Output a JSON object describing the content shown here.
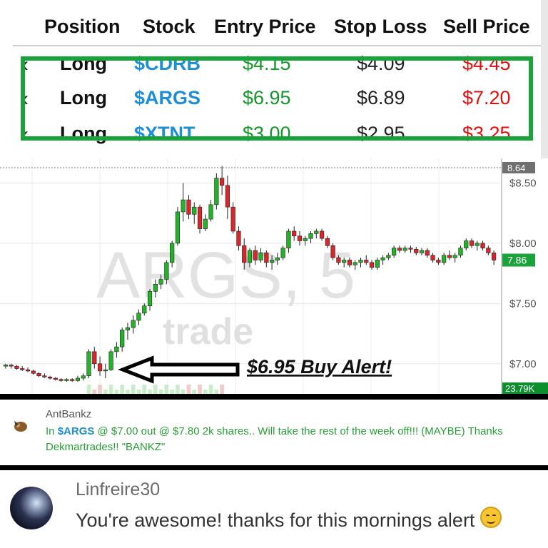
{
  "table": {
    "headers": [
      "Position",
      "Stock",
      "Entry Price",
      "Stop Loss",
      "Sell Price"
    ],
    "rows": [
      {
        "position": "Long",
        "stock": "$CDRB",
        "entry": "$4.15",
        "stop": "$4.09",
        "sell": "$4.45"
      },
      {
        "position": "Long",
        "stock": "$ARGS",
        "entry": "$6.95",
        "stop": "$6.89",
        "sell": "$7.20"
      },
      {
        "position": "Long",
        "stock": "$XTNT",
        "entry": "$3.00",
        "stop": "$2.95",
        "sell": "$3.25"
      }
    ],
    "highlight_color": "#1aa33a"
  },
  "chart": {
    "watermark_symbol": "ARGS, 5",
    "watermark_brand": "trade",
    "price_ticks": [
      "$8.50",
      "$8.00",
      "$7.50",
      "$7.00"
    ],
    "high_label": "8.64",
    "last_label": "7.86",
    "volume_label": "23.79K",
    "annotation": "$6.95 Buy Alert!",
    "up_color": "#22b326",
    "down_color": "#d8262b",
    "last_color": "#1aa33a",
    "chart_data": {
      "type": "candlestick",
      "ylim": [
        6.75,
        8.68
      ],
      "high": 8.64,
      "last": 7.86,
      "candles": [
        [
          6.98,
          7.0,
          6.96,
          6.99
        ],
        [
          6.99,
          7.0,
          6.96,
          6.98
        ],
        [
          6.98,
          6.99,
          6.95,
          6.96
        ],
        [
          6.96,
          6.98,
          6.94,
          6.95
        ],
        [
          6.95,
          6.97,
          6.93,
          6.94
        ],
        [
          6.94,
          6.95,
          6.91,
          6.92
        ],
        [
          6.92,
          6.93,
          6.89,
          6.9
        ],
        [
          6.9,
          6.92,
          6.88,
          6.89
        ],
        [
          6.89,
          6.9,
          6.87,
          6.88
        ],
        [
          6.88,
          6.89,
          6.86,
          6.87
        ],
        [
          6.87,
          6.88,
          6.85,
          6.86
        ],
        [
          6.86,
          6.88,
          6.85,
          6.87
        ],
        [
          6.87,
          6.88,
          6.85,
          6.86
        ],
        [
          6.86,
          6.9,
          6.85,
          6.88
        ],
        [
          6.88,
          6.92,
          6.86,
          6.9
        ],
        [
          6.9,
          7.12,
          6.88,
          7.1
        ],
        [
          7.1,
          7.14,
          6.96,
          7.0
        ],
        [
          7.0,
          7.06,
          6.9,
          6.94
        ],
        [
          6.94,
          7.0,
          6.88,
          6.95
        ],
        [
          6.95,
          7.12,
          6.94,
          7.1
        ],
        [
          7.1,
          7.18,
          7.05,
          7.14
        ],
        [
          7.14,
          7.3,
          7.1,
          7.28
        ],
        [
          7.28,
          7.34,
          7.2,
          7.3
        ],
        [
          7.3,
          7.4,
          7.25,
          7.36
        ],
        [
          7.36,
          7.45,
          7.32,
          7.42
        ],
        [
          7.42,
          7.5,
          7.4,
          7.48
        ],
        [
          7.48,
          7.62,
          7.44,
          7.6
        ],
        [
          7.6,
          7.7,
          7.55,
          7.66
        ],
        [
          7.66,
          7.74,
          7.62,
          7.7
        ],
        [
          7.7,
          7.86,
          7.66,
          7.84
        ],
        [
          7.84,
          8.02,
          7.8,
          8.0
        ],
        [
          8.0,
          8.3,
          7.98,
          8.26
        ],
        [
          8.26,
          8.5,
          8.18,
          8.36
        ],
        [
          8.36,
          8.4,
          8.2,
          8.24
        ],
        [
          8.24,
          8.34,
          8.16,
          8.3
        ],
        [
          8.3,
          8.32,
          8.08,
          8.12
        ],
        [
          8.12,
          8.24,
          8.1,
          8.2
        ],
        [
          8.2,
          8.36,
          8.18,
          8.32
        ],
        [
          8.32,
          8.58,
          8.28,
          8.54
        ],
        [
          8.54,
          8.64,
          8.4,
          8.48
        ],
        [
          8.48,
          8.56,
          8.2,
          8.3
        ],
        [
          8.3,
          8.34,
          8.08,
          8.1
        ],
        [
          8.1,
          8.14,
          7.94,
          7.98
        ],
        [
          7.98,
          8.04,
          7.78,
          7.84
        ],
        [
          7.84,
          7.96,
          7.8,
          7.94
        ],
        [
          7.94,
          7.98,
          7.82,
          7.86
        ],
        [
          7.86,
          7.96,
          7.84,
          7.92
        ],
        [
          7.92,
          7.94,
          7.8,
          7.84
        ],
        [
          7.84,
          7.9,
          7.78,
          7.86
        ],
        [
          7.86,
          7.92,
          7.82,
          7.88
        ],
        [
          7.88,
          7.98,
          7.86,
          7.96
        ],
        [
          7.96,
          8.12,
          7.92,
          8.1
        ],
        [
          8.1,
          8.14,
          8.02,
          8.06
        ],
        [
          8.06,
          8.1,
          7.98,
          8.02
        ],
        [
          8.02,
          8.06,
          7.98,
          8.04
        ],
        [
          8.04,
          8.1,
          8.0,
          8.08
        ],
        [
          8.08,
          8.12,
          8.04,
          8.1
        ],
        [
          8.1,
          8.12,
          8.02,
          8.04
        ],
        [
          8.04,
          8.06,
          7.96,
          7.98
        ],
        [
          7.98,
          8.0,
          7.86,
          7.88
        ],
        [
          7.88,
          7.9,
          7.82,
          7.84
        ],
        [
          7.84,
          7.88,
          7.8,
          7.86
        ],
        [
          7.86,
          7.88,
          7.8,
          7.82
        ],
        [
          7.82,
          7.86,
          7.78,
          7.84
        ],
        [
          7.84,
          7.88,
          7.8,
          7.86
        ],
        [
          7.86,
          7.9,
          7.82,
          7.84
        ],
        [
          7.84,
          7.86,
          7.78,
          7.8
        ],
        [
          7.8,
          7.88,
          7.78,
          7.86
        ],
        [
          7.86,
          7.9,
          7.82,
          7.88
        ],
        [
          7.88,
          7.92,
          7.86,
          7.9
        ],
        [
          7.9,
          7.98,
          7.88,
          7.96
        ],
        [
          7.96,
          7.98,
          7.92,
          7.94
        ],
        [
          7.94,
          7.98,
          7.92,
          7.96
        ],
        [
          7.96,
          7.98,
          7.92,
          7.95
        ],
        [
          7.95,
          7.97,
          7.9,
          7.92
        ],
        [
          7.92,
          7.96,
          7.9,
          7.94
        ],
        [
          7.94,
          7.96,
          7.88,
          7.9
        ],
        [
          7.9,
          7.92,
          7.84,
          7.86
        ],
        [
          7.86,
          7.88,
          7.82,
          7.84
        ],
        [
          7.84,
          7.92,
          7.82,
          7.9
        ],
        [
          7.9,
          7.94,
          7.86,
          7.88
        ],
        [
          7.88,
          7.92,
          7.84,
          7.9
        ],
        [
          7.9,
          7.98,
          7.88,
          7.96
        ],
        [
          7.96,
          8.04,
          7.94,
          8.02
        ],
        [
          8.02,
          8.04,
          7.96,
          7.98
        ],
        [
          7.98,
          8.02,
          7.94,
          8.0
        ],
        [
          8.0,
          8.02,
          7.94,
          7.96
        ],
        [
          7.96,
          7.98,
          7.9,
          7.92
        ],
        [
          7.92,
          7.94,
          7.82,
          7.86
        ]
      ]
    }
  },
  "comment1": {
    "user": "AntBankz",
    "prefix": "In ",
    "ticker": "$ARGS",
    "text": " @ $7.00 out @ $7.80 2k shares.. Will take the rest of the week off!!! (MAYBE) Thanks Dekmartrades!! \"BANKZ\""
  },
  "comment2": {
    "user": "Linfreire30",
    "text": "You're awesome! thanks for this mornings alert"
  }
}
